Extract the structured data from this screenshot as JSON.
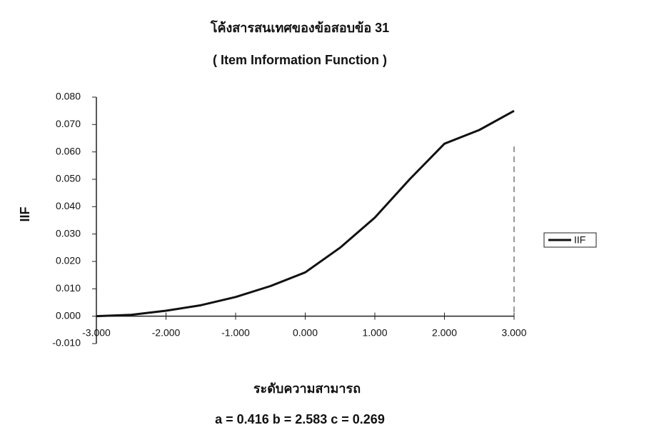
{
  "chart_data": {
    "type": "line",
    "title": "โค้งสารสนเทศของข้อสอบข้อ 31",
    "subtitle": "( Item Information Function )",
    "x_label": "ระดับความสามารถ",
    "y_label": "IIF",
    "annotation": "a  =  0.416  b  =  2.583  c  =  0.269",
    "x": [
      -3,
      -2.5,
      -2,
      -1.5,
      -1,
      -0.5,
      0,
      0.5,
      1,
      1.5,
      2,
      2.5,
      3
    ],
    "series": [
      {
        "name": "IIF",
        "color": "#111111",
        "values": [
          0.0,
          0.0005,
          0.002,
          0.004,
          0.007,
          0.011,
          0.016,
          0.025,
          0.036,
          0.05,
          0.063,
          0.068,
          0.075
        ]
      }
    ],
    "xlim": [
      -3,
      3
    ],
    "xticks": [
      {
        "value": -3,
        "label": "-3.000"
      },
      {
        "value": -2,
        "label": "-2.000"
      },
      {
        "value": -1,
        "label": "-1.000"
      },
      {
        "value": 0,
        "label": "0.000"
      },
      {
        "value": 1,
        "label": "1.000"
      },
      {
        "value": 2,
        "label": "2.000"
      },
      {
        "value": 3,
        "label": "3.000"
      }
    ],
    "ylim": [
      -0.01,
      0.08
    ],
    "yticks": [
      {
        "value": -0.01,
        "label": "-0.010"
      },
      {
        "value": 0,
        "label": "0.000"
      },
      {
        "value": 0.01,
        "label": "0.010"
      },
      {
        "value": 0.02,
        "label": "0.020"
      },
      {
        "value": 0.03,
        "label": "0.030"
      },
      {
        "value": 0.04,
        "label": "0.040"
      },
      {
        "value": 0.05,
        "label": "0.050"
      },
      {
        "value": 0.06,
        "label": "0.060"
      },
      {
        "value": 0.07,
        "label": "0.070"
      },
      {
        "value": 0.08,
        "label": "0.080"
      }
    ],
    "legend": "right"
  }
}
